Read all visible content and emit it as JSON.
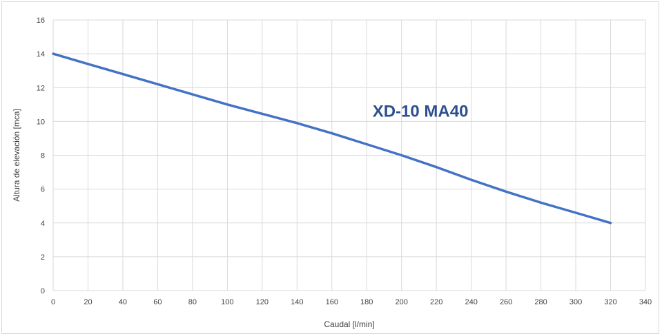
{
  "chart_data": {
    "type": "line",
    "title": "",
    "xlabel": "Caudal [l/min]",
    "ylabel": "Altura de elevación [mca]",
    "xlim": [
      0,
      340
    ],
    "ylim": [
      0,
      16
    ],
    "xticks": [
      0,
      20,
      40,
      60,
      80,
      100,
      120,
      140,
      160,
      180,
      200,
      220,
      240,
      260,
      280,
      300,
      320,
      340
    ],
    "yticks": [
      0,
      2,
      4,
      6,
      8,
      10,
      12,
      14,
      16
    ],
    "grid": true,
    "legend": "none",
    "series": [
      {
        "color": "#4472c4",
        "x": [
          0,
          20,
          40,
          60,
          80,
          100,
          120,
          140,
          160,
          180,
          200,
          220,
          240,
          260,
          280,
          300,
          320
        ],
        "y": [
          14.0,
          13.4,
          12.8,
          12.2,
          11.6,
          11.0,
          10.45,
          9.9,
          9.3,
          8.65,
          8.0,
          7.3,
          6.55,
          5.85,
          5.2,
          4.6,
          4.0
        ]
      }
    ],
    "annotation": {
      "text": "XD-10 MA40",
      "x": 200,
      "y": 10.6
    }
  },
  "colors": {
    "grid": "#d9d9d9",
    "tick_text": "#404040",
    "annotation": "#2e4f8f"
  }
}
